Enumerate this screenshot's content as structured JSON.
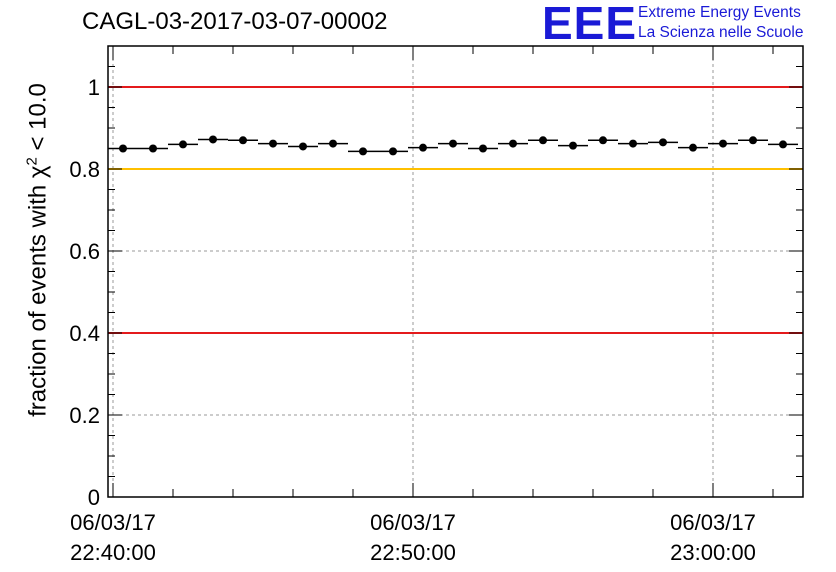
{
  "header": {
    "title": "CAGL-03-2017-03-07-00002",
    "logo_mark": "EEE",
    "logo_line1": "Extreme Energy Events",
    "logo_line2": "La Scienza nelle Scuole"
  },
  "chart_data": {
    "type": "scatter",
    "title": "CAGL-03-2017-03-07-00002",
    "ylabel_parts": {
      "prefix": "fraction of events with ",
      "symbol": "χ",
      "sup": "2",
      "suffix": " < 10.0"
    },
    "ylim": [
      0,
      1.1
    ],
    "yticks": [
      0,
      0.2,
      0.4,
      0.6,
      0.8,
      1
    ],
    "ytick_labels": [
      "0",
      "0.2",
      "0.4",
      "0.6",
      "0.8",
      "1"
    ],
    "xlim": [
      "22:39:50",
      "23:03:00"
    ],
    "xticks": [
      {
        "time": "22:40:00",
        "date": "06/03/17",
        "label": "22:40:00"
      },
      {
        "time": "22:50:00",
        "date": "06/03/17",
        "label": "22:50:00"
      },
      {
        "time": "23:00:00",
        "date": "06/03/17",
        "label": "23:00:00"
      }
    ],
    "grid": true,
    "reference_lines": [
      {
        "y": 1.0,
        "color": "#e41a1c"
      },
      {
        "y": 0.8,
        "color": "#ffc000"
      },
      {
        "y": 0.4,
        "color": "#e41a1c"
      }
    ],
    "series": [
      {
        "x": [
          "22:40:20",
          "22:41:20",
          "22:42:20",
          "22:43:20",
          "22:44:20",
          "22:45:20",
          "22:46:20",
          "22:47:20",
          "22:48:20",
          "22:49:20",
          "22:50:20",
          "22:51:20",
          "22:52:20",
          "22:53:20",
          "22:54:20",
          "22:55:20",
          "22:56:20",
          "22:57:20",
          "22:58:20",
          "22:59:20",
          "23:00:20",
          "23:01:20",
          "23:02:20"
        ],
        "y": [
          0.85,
          0.85,
          0.86,
          0.872,
          0.87,
          0.862,
          0.855,
          0.862,
          0.843,
          0.843,
          0.852,
          0.862,
          0.85,
          0.862,
          0.87,
          0.857,
          0.87,
          0.862,
          0.865,
          0.852,
          0.862,
          0.87,
          0.86
        ],
        "bin_width_seconds": 60,
        "marker_color": "#000000"
      }
    ]
  }
}
